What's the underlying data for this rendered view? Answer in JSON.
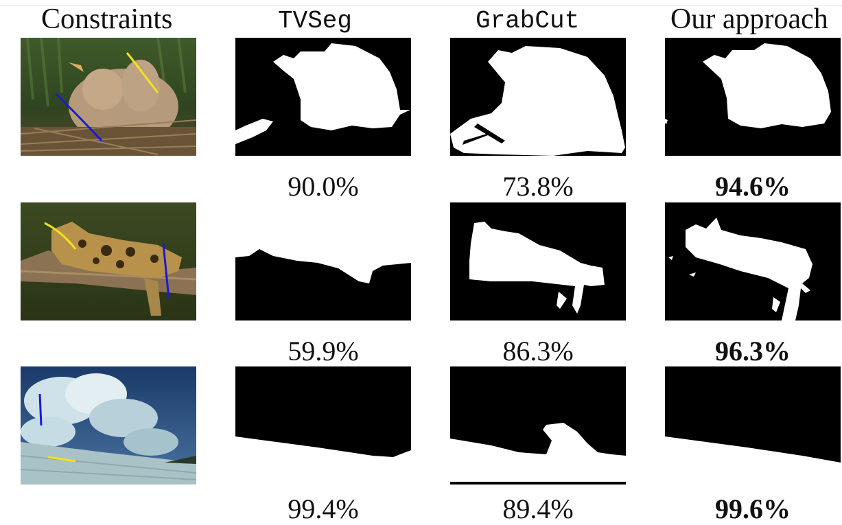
{
  "columns": {
    "constraints": "Constraints",
    "tvseg": "TVSeg",
    "grabcut": "GrabCut",
    "ours": "Our approach"
  },
  "rows": [
    {
      "subject": "birds",
      "scores": {
        "tvseg": "90.0%",
        "grabcut": "73.8%",
        "ours": "94.6%"
      }
    },
    {
      "subject": "leopard",
      "scores": {
        "tvseg": "59.9%",
        "grabcut": "86.3%",
        "ours": "96.3%"
      }
    },
    {
      "subject": "clouds",
      "scores": {
        "tvseg": "99.4%",
        "grabcut": "89.4%",
        "ours": "99.6%"
      }
    }
  ],
  "colors": {
    "foreground_scribble": "#f2e21a",
    "background_scribble": "#1a1ad6",
    "mask_fg": "#ffffff",
    "mask_bg": "#000000"
  }
}
